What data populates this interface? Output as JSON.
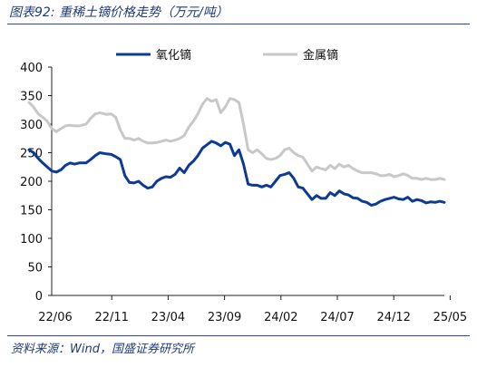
{
  "header": {
    "title": "图表92:  重稀土镝价格走势（万元/吨）"
  },
  "footer": {
    "source": "资料来源：Wind，国盛证券研究所"
  },
  "colors": {
    "series_oxide": "#0d3a93",
    "series_metal": "#c8c8c8",
    "title_text": "#1f3a78",
    "rule": "#2f4a8a"
  },
  "chart_data": {
    "type": "line",
    "title": "",
    "xlabel": "",
    "ylabel": "",
    "ylim": [
      0,
      400
    ],
    "y_ticks": [
      "0",
      "50",
      "100",
      "150",
      "200",
      "250",
      "300",
      "350",
      "400"
    ],
    "x_ticks": [
      "22/06",
      "22/11",
      "23/04",
      "23/09",
      "24/02",
      "24/07",
      "24/12",
      "25/05"
    ],
    "grid": false,
    "legend": "top",
    "series": [
      {
        "name": "氧化镝",
        "values": [
          [
            0,
            255
          ],
          [
            0.2,
            250
          ],
          [
            0.4,
            240
          ],
          [
            0.6,
            232
          ],
          [
            0.8,
            225
          ],
          [
            1,
            218
          ],
          [
            1.2,
            216
          ],
          [
            1.4,
            220
          ],
          [
            1.6,
            228
          ],
          [
            1.8,
            232
          ],
          [
            2,
            230
          ],
          [
            2.2,
            232
          ],
          [
            2.5,
            232
          ],
          [
            2.7,
            238
          ],
          [
            2.9,
            245
          ],
          [
            3.1,
            250
          ],
          [
            3.4,
            248
          ],
          [
            3.6,
            247
          ],
          [
            3.8,
            243
          ],
          [
            4,
            238
          ],
          [
            4.2,
            210
          ],
          [
            4.4,
            198
          ],
          [
            4.6,
            197
          ],
          [
            4.8,
            200
          ],
          [
            5,
            193
          ],
          [
            5.2,
            188
          ],
          [
            5.4,
            190
          ],
          [
            5.6,
            200
          ],
          [
            5.8,
            205
          ],
          [
            6,
            208
          ],
          [
            6.2,
            207
          ],
          [
            6.4,
            212
          ],
          [
            6.6,
            223
          ],
          [
            6.8,
            215
          ],
          [
            7,
            228
          ],
          [
            7.2,
            235
          ],
          [
            7.4,
            245
          ],
          [
            7.6,
            258
          ],
          [
            7.8,
            264
          ],
          [
            8,
            270
          ],
          [
            8.2,
            267
          ],
          [
            8.4,
            262
          ],
          [
            8.6,
            268
          ],
          [
            8.8,
            265
          ],
          [
            9,
            245
          ],
          [
            9.2,
            255
          ],
          [
            9.4,
            230
          ],
          [
            9.6,
            195
          ],
          [
            9.8,
            193
          ],
          [
            10,
            193
          ],
          [
            10.2,
            190
          ],
          [
            10.4,
            193
          ],
          [
            10.6,
            190
          ],
          [
            10.8,
            200
          ],
          [
            11,
            210
          ],
          [
            11.2,
            212
          ],
          [
            11.4,
            215
          ],
          [
            11.6,
            205
          ],
          [
            11.8,
            190
          ],
          [
            12,
            188
          ],
          [
            12.2,
            178
          ],
          [
            12.4,
            168
          ],
          [
            12.6,
            175
          ],
          [
            12.8,
            170
          ],
          [
            13,
            170
          ],
          [
            13.2,
            180
          ],
          [
            13.4,
            175
          ],
          [
            13.6,
            183
          ],
          [
            13.8,
            178
          ],
          [
            14,
            176
          ],
          [
            14.2,
            171
          ],
          [
            14.4,
            170
          ],
          [
            14.6,
            165
          ],
          [
            14.8,
            163
          ],
          [
            15,
            158
          ],
          [
            15.2,
            160
          ],
          [
            15.4,
            165
          ],
          [
            15.6,
            168
          ],
          [
            15.8,
            170
          ],
          [
            16,
            172
          ],
          [
            16.2,
            169
          ],
          [
            16.4,
            168
          ],
          [
            16.6,
            172
          ],
          [
            16.8,
            165
          ],
          [
            17,
            168
          ],
          [
            17.2,
            166
          ],
          [
            17.4,
            162
          ],
          [
            17.6,
            164
          ],
          [
            17.8,
            163
          ],
          [
            18,
            165
          ],
          [
            18.2,
            163
          ]
        ]
      },
      {
        "name": "金属镝",
        "values": [
          [
            0,
            338
          ],
          [
            0.2,
            330
          ],
          [
            0.4,
            318
          ],
          [
            0.6,
            312
          ],
          [
            0.8,
            305
          ],
          [
            1,
            292
          ],
          [
            1.2,
            287
          ],
          [
            1.4,
            292
          ],
          [
            1.6,
            297
          ],
          [
            1.8,
            298
          ],
          [
            2,
            297
          ],
          [
            2.2,
            297
          ],
          [
            2.5,
            300
          ],
          [
            2.7,
            310
          ],
          [
            2.9,
            318
          ],
          [
            3.1,
            320
          ],
          [
            3.4,
            317
          ],
          [
            3.6,
            318
          ],
          [
            3.8,
            312
          ],
          [
            4,
            290
          ],
          [
            4.2,
            275
          ],
          [
            4.4,
            275
          ],
          [
            4.6,
            272
          ],
          [
            4.8,
            275
          ],
          [
            5,
            270
          ],
          [
            5.2,
            267
          ],
          [
            5.4,
            267
          ],
          [
            5.6,
            268
          ],
          [
            5.8,
            270
          ],
          [
            6,
            272
          ],
          [
            6.2,
            270
          ],
          [
            6.4,
            272
          ],
          [
            6.6,
            275
          ],
          [
            6.8,
            280
          ],
          [
            7,
            295
          ],
          [
            7.2,
            305
          ],
          [
            7.4,
            318
          ],
          [
            7.6,
            335
          ],
          [
            7.8,
            345
          ],
          [
            8,
            340
          ],
          [
            8.2,
            343
          ],
          [
            8.4,
            320
          ],
          [
            8.6,
            330
          ],
          [
            8.8,
            345
          ],
          [
            9,
            343
          ],
          [
            9.2,
            338
          ],
          [
            9.4,
            300
          ],
          [
            9.6,
            255
          ],
          [
            9.8,
            250
          ],
          [
            10,
            255
          ],
          [
            10.2,
            248
          ],
          [
            10.4,
            240
          ],
          [
            10.6,
            238
          ],
          [
            10.8,
            240
          ],
          [
            11,
            245
          ],
          [
            11.2,
            255
          ],
          [
            11.4,
            258
          ],
          [
            11.6,
            250
          ],
          [
            11.8,
            245
          ],
          [
            12,
            242
          ],
          [
            12.2,
            230
          ],
          [
            12.4,
            218
          ],
          [
            12.6,
            225
          ],
          [
            12.8,
            222
          ],
          [
            13,
            220
          ],
          [
            13.2,
            228
          ],
          [
            13.4,
            222
          ],
          [
            13.6,
            230
          ],
          [
            13.8,
            225
          ],
          [
            14,
            228
          ],
          [
            14.2,
            222
          ],
          [
            14.4,
            218
          ],
          [
            14.6,
            215
          ],
          [
            14.8,
            215
          ],
          [
            15,
            215
          ],
          [
            15.2,
            213
          ],
          [
            15.4,
            210
          ],
          [
            15.6,
            210
          ],
          [
            15.8,
            212
          ],
          [
            16,
            208
          ],
          [
            16.2,
            210
          ],
          [
            16.4,
            213
          ],
          [
            16.6,
            210
          ],
          [
            16.8,
            205
          ],
          [
            17,
            205
          ],
          [
            17.2,
            203
          ],
          [
            17.4,
            205
          ],
          [
            17.6,
            203
          ],
          [
            17.8,
            203
          ],
          [
            18,
            205
          ],
          [
            18.2,
            203
          ]
        ]
      }
    ]
  }
}
